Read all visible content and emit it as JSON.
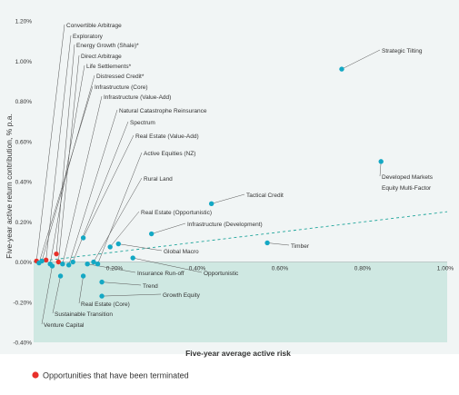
{
  "colors": {
    "panel": "#f1f5f5",
    "shade": "#cfe8e2",
    "point_active": "#14a8c4",
    "point_terminated": "#e8302a",
    "trend": "#1fa59b",
    "leader": "#555555",
    "text": "#333333"
  },
  "chart_data": {
    "type": "scatter",
    "xlabel": "Five-year average active risk",
    "ylabel": "Five-year active return contribution, % p.a.",
    "xlim": [
      0,
      1.0
    ],
    "ylim": [
      -0.4,
      1.2
    ],
    "x_ticks": [
      0.2,
      0.4,
      0.6,
      0.8,
      1.0
    ],
    "x_tick_labels": [
      "0.20%",
      "0.40%",
      "0.60%",
      "0.80%",
      "1.00%"
    ],
    "y_ticks": [
      -0.4,
      -0.2,
      0.0,
      0.2,
      0.4,
      0.6,
      0.8,
      1.0,
      1.2
    ],
    "y_tick_labels": [
      "-0.40%",
      "-0.20%",
      "0.00%",
      "0.20%",
      "0.40%",
      "0.60%",
      "0.80%",
      "1.00%",
      "1.20%"
    ],
    "trend_line": {
      "x": [
        0.0,
        1.0
      ],
      "y": [
        0.0,
        0.25
      ]
    },
    "shaded_region": "below 0.00%",
    "legend": {
      "label": "Opportunities that have been terminated",
      "placement": "bottom-left"
    },
    "points": [
      {
        "label": "Convertible Arbitrage",
        "x": 0.007,
        "y": 0.005,
        "terminated": true
      },
      {
        "label": "Exploratory",
        "x": 0.03,
        "y": 0.01,
        "terminated": true
      },
      {
        "label": "Energy Growth (Shale)*",
        "x": 0.055,
        "y": 0.04,
        "terminated": true
      },
      {
        "label": "Direct Arbitrage",
        "x": 0.06,
        "y": 0.0,
        "terminated": true
      },
      {
        "label": "Life Settlements*",
        "x": 0.04,
        "y": -0.01,
        "terminated": false
      },
      {
        "label": "Distressed Credit*",
        "x": 0.02,
        "y": 0.005,
        "terminated": false
      },
      {
        "label": "Infrastructure (Core)",
        "x": 0.013,
        "y": -0.005,
        "terminated": false
      },
      {
        "label": "Infrastructure (Value-Add)",
        "x": 0.07,
        "y": -0.01,
        "terminated": false
      },
      {
        "label": "Natural Catastrophe Reinsurance",
        "x": 0.085,
        "y": -0.015,
        "terminated": false
      },
      {
        "label": "Spectrum",
        "x": 0.095,
        "y": 0.0,
        "terminated": false
      },
      {
        "label": "Real Estate (Value-Add)",
        "x": 0.12,
        "y": 0.12,
        "terminated": false
      },
      {
        "label": "Active Equities (NZ)",
        "x": 0.155,
        "y": -0.01,
        "terminated": false
      },
      {
        "label": "Rural Land",
        "x": 0.145,
        "y": 0.0,
        "terminated": false
      },
      {
        "label": "Real Estate (Opportunistic)",
        "x": 0.185,
        "y": 0.075,
        "terminated": false
      },
      {
        "label": "Infrastructure (Development)",
        "x": 0.285,
        "y": 0.14,
        "terminated": false
      },
      {
        "label": "Tactical Credit",
        "x": 0.43,
        "y": 0.29,
        "terminated": false
      },
      {
        "label": "Strategic Tilting",
        "x": 0.745,
        "y": 0.96,
        "terminated": false
      },
      {
        "label": "Developed Markets Equity Multi-Factor",
        "x": 0.84,
        "y": 0.5,
        "terminated": false
      },
      {
        "label": "Timber",
        "x": 0.565,
        "y": 0.095,
        "terminated": false
      },
      {
        "label": "Global Macro",
        "x": 0.205,
        "y": 0.09,
        "terminated": false
      },
      {
        "label": "Opportunistic",
        "x": 0.24,
        "y": 0.02,
        "terminated": false
      },
      {
        "label": "Insurance Run-off",
        "x": 0.13,
        "y": -0.01,
        "terminated": false
      },
      {
        "label": "Trend",
        "x": 0.165,
        "y": -0.1,
        "terminated": false
      },
      {
        "label": "Growth Equity",
        "x": 0.165,
        "y": -0.17,
        "terminated": false
      },
      {
        "label": "Real Estate (Core)",
        "x": 0.12,
        "y": -0.07,
        "terminated": false
      },
      {
        "label": "Sustainable Transition",
        "x": 0.065,
        "y": -0.07,
        "terminated": false
      },
      {
        "label": "Venture Capital",
        "x": 0.045,
        "y": -0.02,
        "terminated": false
      }
    ]
  }
}
